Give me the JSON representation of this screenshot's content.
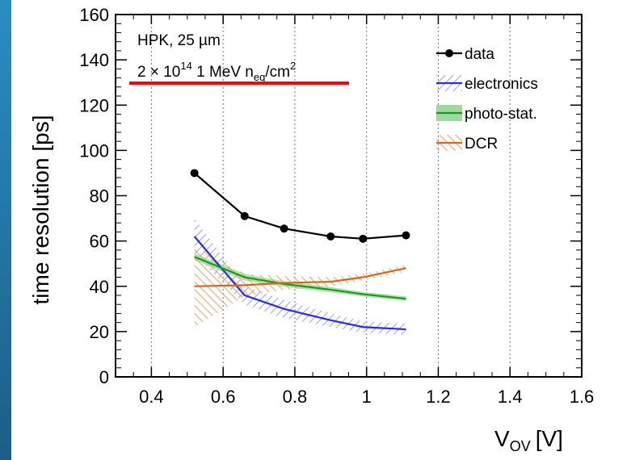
{
  "chart_data": {
    "type": "line",
    "xlabel": "V",
    "xlabel_sub": "OV",
    "xlabel_unit": "[V]",
    "ylabel": "time resolution [ps]",
    "xlim": [
      0.3,
      1.6
    ],
    "ylim": [
      0,
      160
    ],
    "x_ticks": [
      "0.4",
      "0.6",
      "0.8",
      "1",
      "1.2",
      "1.4",
      "1.6"
    ],
    "x_tick_values": [
      0.4,
      0.6,
      0.8,
      1.0,
      1.2,
      1.4,
      1.6
    ],
    "y_ticks": [
      "0",
      "20",
      "40",
      "60",
      "80",
      "100",
      "120",
      "140",
      "160"
    ],
    "y_tick_values": [
      0,
      20,
      40,
      60,
      80,
      100,
      120,
      140,
      160
    ],
    "grid": "vertical dotted",
    "legend_position": "top-right",
    "annotation": {
      "line1": "HPK, 25 µm",
      "line2_pre": "2 × 10",
      "line2_sup": "14",
      "line2_mid": " 1 MeV n",
      "line2_sub": "eq",
      "line2_post": "/cm",
      "line2_sup2": "2"
    },
    "x": [
      0.52,
      0.66,
      0.77,
      0.9,
      0.99,
      1.11
    ],
    "series": [
      {
        "name": "data",
        "color": "#000000",
        "values": [
          90,
          71,
          65.5,
          62,
          61,
          62.5
        ],
        "markers": true
      },
      {
        "name": "electronics",
        "color": "#2a2af0",
        "values": [
          62,
          36,
          30,
          25,
          22,
          21
        ],
        "band": [
          8,
          4,
          4,
          3,
          2.5,
          2.5
        ],
        "band_style": "hatch-blue"
      },
      {
        "name": "photo-stat.",
        "color": "#1a9a1a",
        "values": [
          53,
          44,
          41,
          38.5,
          36.5,
          34.5
        ],
        "band": [
          1.5,
          1.5,
          1.2,
          1.2,
          1,
          1
        ],
        "band_style": "fill-green"
      },
      {
        "name": "DCR",
        "color": "#d2691e",
        "values": [
          40,
          40.5,
          41.5,
          42,
          44,
          48
        ],
        "band": [
          18,
          5,
          3,
          2,
          1.5,
          1.5
        ],
        "band_style": "hatch-orange"
      }
    ],
    "highlight_color": "#ff0000"
  }
}
